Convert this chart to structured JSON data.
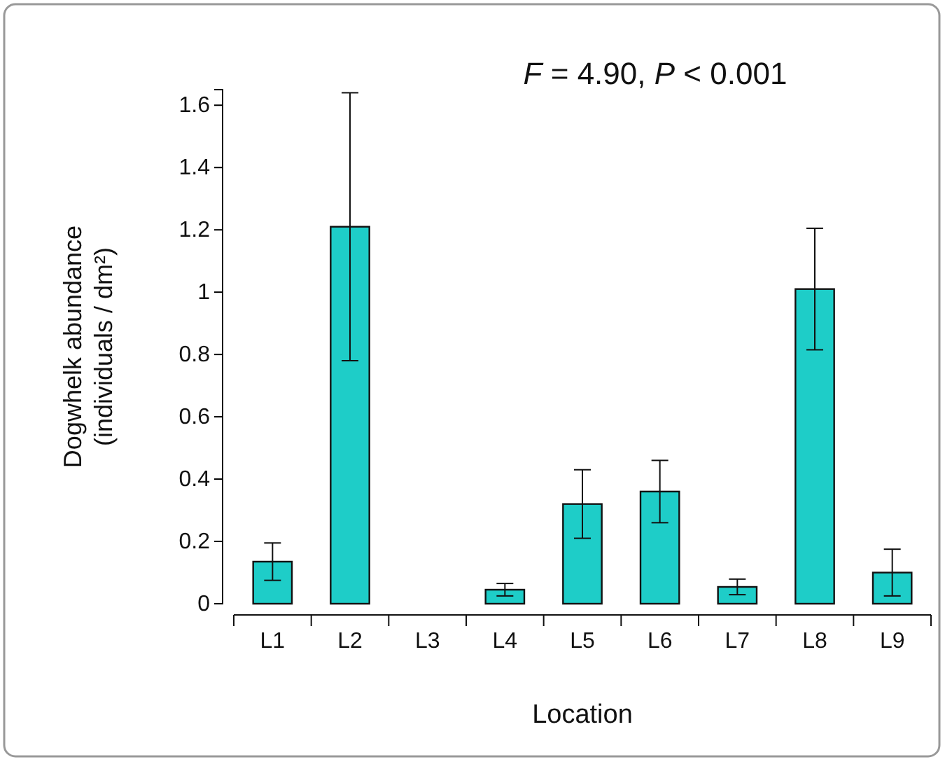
{
  "chart_data": {
    "type": "bar",
    "xlabel": "Location",
    "ylabel": "Dogwhelk abundance\n(individuals / dm²)",
    "annotations": [
      "F = 4.90, P < 0.001"
    ],
    "categories": [
      "L1",
      "L2",
      "L3",
      "L4",
      "L5",
      "L6",
      "L7",
      "L8",
      "L9"
    ],
    "values": [
      0.135,
      1.21,
      0,
      0.045,
      0.32,
      0.36,
      0.054,
      1.01,
      0.1
    ],
    "errors": [
      0.06,
      0.43,
      null,
      0.02,
      0.11,
      0.1,
      0.025,
      0.195,
      0.075
    ],
    "color": "#1ecdc8",
    "ylim": [
      0,
      1.65
    ],
    "yticks": [
      0,
      0.2,
      0.4,
      0.6,
      0.8,
      1,
      1.2,
      1.4,
      1.6
    ],
    "grid": false
  }
}
